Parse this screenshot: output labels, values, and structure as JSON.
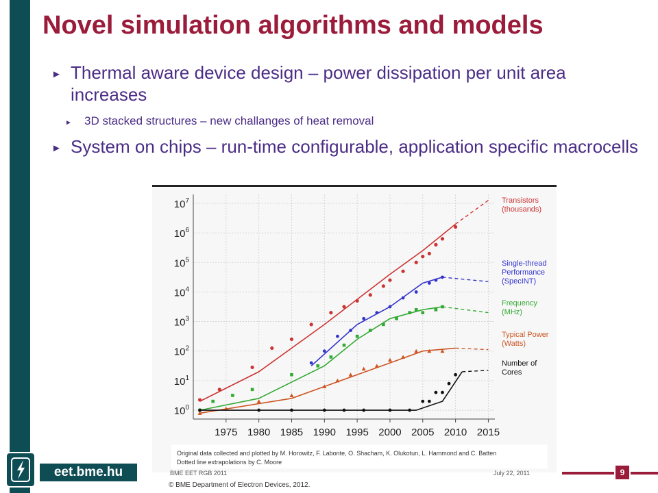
{
  "slide": {
    "title": "Novel simulation algorithms and models",
    "bullets": [
      {
        "marker": "►",
        "text": "Thermal aware device design – power dissipation per unit area increases"
      },
      {
        "marker": "►",
        "text": "3D stacked structures – new challanges of heat removal"
      },
      {
        "marker": "►",
        "text": "System on chips – run-time configurable, application specific macrocells"
      }
    ]
  },
  "footer": {
    "brand": "eet.bme.hu",
    "left_text": "BME EET RGB 2011",
    "right_text": "July 22, 2011",
    "copyright": "© BME Department of Electron Devices, 2012.",
    "page_number": "9"
  },
  "colors": {
    "accent": "#9b1b3a",
    "sidebar": "#0f4d55",
    "bullet_text": "#4b2d86"
  },
  "chart_data": {
    "type": "scatter",
    "x_ticks": [
      "1975",
      "1980",
      "1985",
      "1990",
      "1995",
      "2000",
      "2005",
      "2010",
      "2015"
    ],
    "y_ticks": [
      "10^0",
      "10^1",
      "10^2",
      "10^3",
      "10^4",
      "10^5",
      "10^6",
      "10^7"
    ],
    "xlim": [
      1970,
      2016
    ],
    "ylim_log10": [
      -0.3,
      7.3
    ],
    "scale_y": "log",
    "grid": true,
    "legend_placement": "right",
    "caption_lines": [
      "Original data collected and plotted by M. Horowitz, F. Labonte, O. Shacham, K. Olukotun, L. Hammond and C. Batten",
      "Dotted line extrapolations by C. Moore"
    ],
    "series": [
      {
        "name": "Transistors (thousands)",
        "color": "#cc3333",
        "trend": [
          [
            1971,
            0.3
          ],
          [
            1980,
            1.3
          ],
          [
            1990,
            2.9
          ],
          [
            2000,
            4.6
          ],
          [
            2005,
            5.4
          ],
          [
            2010,
            6.3
          ]
        ],
        "extrap": [
          [
            2010,
            6.3
          ],
          [
            2015,
            7.1
          ]
        ],
        "points": [
          [
            1971,
            0.35
          ],
          [
            1974,
            0.7
          ],
          [
            1979,
            1.45
          ],
          [
            1982,
            2.1
          ],
          [
            1985,
            2.4
          ],
          [
            1988,
            2.9
          ],
          [
            1991,
            3.3
          ],
          [
            1993,
            3.5
          ],
          [
            1995,
            3.7
          ],
          [
            1997,
            3.9
          ],
          [
            1999,
            4.2
          ],
          [
            2000,
            4.4
          ],
          [
            2002,
            4.7
          ],
          [
            2004,
            5.0
          ],
          [
            2005,
            5.2
          ],
          [
            2006,
            5.3
          ],
          [
            2007,
            5.6
          ],
          [
            2008,
            5.8
          ],
          [
            2010,
            6.2
          ]
        ]
      },
      {
        "name": "Single-thread Performance (SpecINT)",
        "color": "#3333cc",
        "trend": [
          [
            1988,
            1.5
          ],
          [
            1995,
            2.9
          ],
          [
            2000,
            3.5
          ],
          [
            2005,
            4.3
          ],
          [
            2008,
            4.5
          ]
        ],
        "extrap": [
          [
            2008,
            4.5
          ],
          [
            2015,
            4.35
          ]
        ],
        "points": [
          [
            1988,
            1.6
          ],
          [
            1990,
            2.0
          ],
          [
            1992,
            2.5
          ],
          [
            1994,
            2.7
          ],
          [
            1996,
            3.1
          ],
          [
            1998,
            3.3
          ],
          [
            2000,
            3.5
          ],
          [
            2002,
            3.8
          ],
          [
            2004,
            4.0
          ],
          [
            2006,
            4.3
          ],
          [
            2007,
            4.4
          ],
          [
            2008,
            4.5
          ]
        ]
      },
      {
        "name": "Frequency (MHz)",
        "color": "#33aa33",
        "trend": [
          [
            1971,
            0.0
          ],
          [
            1980,
            0.4
          ],
          [
            1990,
            1.5
          ],
          [
            1995,
            2.4
          ],
          [
            2000,
            3.1
          ],
          [
            2005,
            3.4
          ],
          [
            2008,
            3.5
          ]
        ],
        "extrap": [
          [
            2008,
            3.5
          ],
          [
            2015,
            3.3
          ]
        ],
        "points": [
          [
            1971,
            0.0
          ],
          [
            1973,
            0.3
          ],
          [
            1976,
            0.5
          ],
          [
            1979,
            0.7
          ],
          [
            1985,
            1.2
          ],
          [
            1989,
            1.5
          ],
          [
            1991,
            1.8
          ],
          [
            1993,
            2.2
          ],
          [
            1995,
            2.5
          ],
          [
            1997,
            2.7
          ],
          [
            1999,
            2.9
          ],
          [
            2001,
            3.1
          ],
          [
            2003,
            3.3
          ],
          [
            2004,
            3.4
          ],
          [
            2005,
            3.3
          ],
          [
            2007,
            3.4
          ],
          [
            2008,
            3.5
          ]
        ]
      },
      {
        "name": "Typical Power (Watts)",
        "color": "#cc5522",
        "trend": [
          [
            1971,
            -0.1
          ],
          [
            1985,
            0.4
          ],
          [
            1990,
            0.8
          ],
          [
            1995,
            1.2
          ],
          [
            2000,
            1.6
          ],
          [
            2005,
            2.0
          ],
          [
            2010,
            2.1
          ]
        ],
        "extrap": [
          [
            2010,
            2.1
          ],
          [
            2015,
            2.05
          ]
        ],
        "points": [
          [
            1971,
            -0.1
          ],
          [
            1975,
            0.05
          ],
          [
            1980,
            0.3
          ],
          [
            1985,
            0.5
          ],
          [
            1990,
            0.8
          ],
          [
            1992,
            1.0
          ],
          [
            1994,
            1.2
          ],
          [
            1996,
            1.4
          ],
          [
            1998,
            1.5
          ],
          [
            2000,
            1.7
          ],
          [
            2002,
            1.8
          ],
          [
            2004,
            2.0
          ],
          [
            2006,
            2.0
          ],
          [
            2008,
            2.0
          ]
        ]
      },
      {
        "name": "Number of Cores",
        "color": "#111111",
        "trend": [
          [
            1971,
            0.0
          ],
          [
            2004,
            0.0
          ],
          [
            2008,
            0.3
          ],
          [
            2011,
            1.3
          ]
        ],
        "extrap": [
          [
            2011,
            1.3
          ],
          [
            2015,
            1.35
          ]
        ],
        "points": [
          [
            1971,
            0.0
          ],
          [
            1980,
            0.0
          ],
          [
            1985,
            0.0
          ],
          [
            1990,
            0.0
          ],
          [
            1993,
            0.0
          ],
          [
            1996,
            0.0
          ],
          [
            2000,
            0.0
          ],
          [
            2003,
            0.0
          ],
          [
            2005,
            0.3
          ],
          [
            2006,
            0.3
          ],
          [
            2007,
            0.6
          ],
          [
            2008,
            0.6
          ],
          [
            2009,
            0.9
          ],
          [
            2010,
            1.2
          ]
        ]
      }
    ],
    "legend": [
      {
        "lines": [
          "Transistors",
          "(thousands)"
        ],
        "color": "#cc3333"
      },
      {
        "lines": [
          "Single-thread",
          "Performance",
          "(SpecINT)"
        ],
        "color": "#3333cc"
      },
      {
        "lines": [
          "Frequency",
          "(MHz)"
        ],
        "color": "#33aa33"
      },
      {
        "lines": [
          "Typical Power",
          "(Watts)"
        ],
        "color": "#cc5522"
      },
      {
        "lines": [
          "Number of",
          "Cores"
        ],
        "color": "#111111"
      }
    ]
  }
}
